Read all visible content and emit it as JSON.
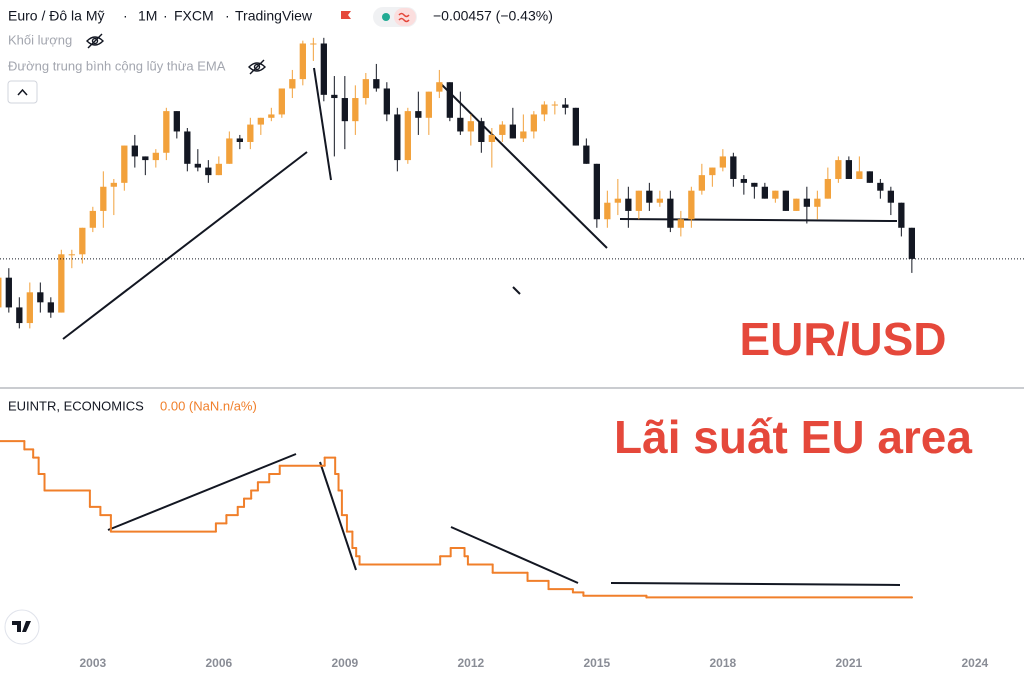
{
  "header": {
    "symbol": "Euro / Đô la Mỹ",
    "interval": "1M",
    "exchange": "FXCM",
    "source": "TradingView",
    "change": "−0.00457 (−0.43%)"
  },
  "indicators": [
    "Khối lượng",
    "Đường trung bình cộng lũy thừa EMA"
  ],
  "chart_data": [
    {
      "type": "candlestick",
      "title": "EUR/USD",
      "up_color": "#f2a13b",
      "down_color": "#131722",
      "log_scale": true,
      "xlim": [
        2000.79,
        2025.17
      ],
      "ylim": [
        0.736,
        1.74
      ],
      "x": [
        2000.75,
        2001,
        2001.25,
        2001.5,
        2001.75,
        2002,
        2002.25,
        2002.5,
        2002.75,
        2003,
        2003.25,
        2003.5,
        2003.75,
        2004,
        2004.25,
        2004.5,
        2004.75,
        2005,
        2005.25,
        2005.5,
        2005.75,
        2006,
        2006.25,
        2006.5,
        2006.75,
        2007,
        2007.25,
        2007.5,
        2007.75,
        2008,
        2008.25,
        2008.5,
        2008.75,
        2009,
        2009.25,
        2009.5,
        2009.75,
        2010,
        2010.25,
        2010.5,
        2010.75,
        2011,
        2011.25,
        2011.5,
        2011.75,
        2012,
        2012.25,
        2012.5,
        2012.75,
        2013,
        2013.25,
        2013.5,
        2013.75,
        2014,
        2014.25,
        2014.5,
        2014.75,
        2015,
        2015.25,
        2015.5,
        2015.75,
        2016,
        2016.25,
        2016.5,
        2016.75,
        2017,
        2017.25,
        2017.5,
        2017.75,
        2018,
        2018.25,
        2018.5,
        2018.75,
        2019,
        2019.25,
        2019.5,
        2019.75,
        2020,
        2020.25,
        2020.5,
        2020.75,
        2021,
        2021.25,
        2021.5,
        2021.75,
        2022,
        2022.25,
        2022.5
      ],
      "open": [
        0.88,
        0.94,
        0.88,
        0.85,
        0.91,
        0.89,
        0.87,
        0.99,
        0.99,
        1.05,
        1.09,
        1.15,
        1.16,
        1.26,
        1.23,
        1.22,
        1.24,
        1.36,
        1.3,
        1.21,
        1.2,
        1.18,
        1.21,
        1.28,
        1.27,
        1.32,
        1.34,
        1.35,
        1.43,
        1.46,
        1.58,
        1.58,
        1.41,
        1.4,
        1.33,
        1.4,
        1.46,
        1.43,
        1.35,
        1.22,
        1.36,
        1.34,
        1.42,
        1.45,
        1.34,
        1.3,
        1.33,
        1.27,
        1.29,
        1.32,
        1.28,
        1.3,
        1.35,
        1.38,
        1.38,
        1.37,
        1.26,
        1.21,
        1.07,
        1.11,
        1.12,
        1.09,
        1.14,
        1.11,
        1.12,
        1.05,
        1.07,
        1.14,
        1.18,
        1.2,
        1.23,
        1.17,
        1.16,
        1.15,
        1.12,
        1.14,
        1.09,
        1.12,
        1.1,
        1.12,
        1.17,
        1.22,
        1.17,
        1.19,
        1.16,
        1.14,
        1.11,
        1.05
      ],
      "high": [
        0.94,
        0.96,
        0.9,
        0.93,
        0.93,
        0.9,
        1.0,
        1.0,
        1.05,
        1.1,
        1.19,
        1.17,
        1.26,
        1.29,
        1.23,
        1.25,
        1.37,
        1.36,
        1.31,
        1.25,
        1.22,
        1.23,
        1.3,
        1.29,
        1.34,
        1.34,
        1.37,
        1.43,
        1.49,
        1.59,
        1.6,
        1.6,
        1.47,
        1.47,
        1.44,
        1.48,
        1.51,
        1.45,
        1.37,
        1.37,
        1.42,
        1.42,
        1.49,
        1.45,
        1.42,
        1.35,
        1.34,
        1.31,
        1.33,
        1.37,
        1.35,
        1.36,
        1.39,
        1.39,
        1.4,
        1.37,
        1.28,
        1.21,
        1.14,
        1.17,
        1.15,
        1.14,
        1.16,
        1.14,
        1.14,
        1.09,
        1.15,
        1.21,
        1.2,
        1.25,
        1.24,
        1.18,
        1.16,
        1.16,
        1.14,
        1.14,
        1.12,
        1.15,
        1.14,
        1.2,
        1.23,
        1.23,
        1.23,
        1.19,
        1.17,
        1.15,
        1.11,
        1.05
      ],
      "low": [
        0.82,
        0.87,
        0.84,
        0.84,
        0.87,
        0.86,
        0.87,
        0.96,
        0.97,
        1.04,
        1.05,
        1.08,
        1.14,
        1.2,
        1.18,
        1.2,
        1.22,
        1.28,
        1.19,
        1.19,
        1.16,
        1.18,
        1.21,
        1.25,
        1.25,
        1.29,
        1.33,
        1.34,
        1.4,
        1.44,
        1.52,
        1.39,
        1.23,
        1.25,
        1.29,
        1.38,
        1.42,
        1.33,
        1.19,
        1.21,
        1.29,
        1.29,
        1.4,
        1.33,
        1.29,
        1.26,
        1.24,
        1.2,
        1.27,
        1.28,
        1.27,
        1.28,
        1.33,
        1.35,
        1.35,
        1.26,
        1.21,
        1.05,
        1.05,
        1.08,
        1.05,
        1.07,
        1.09,
        1.1,
        1.04,
        1.03,
        1.05,
        1.13,
        1.15,
        1.19,
        1.15,
        1.13,
        1.12,
        1.12,
        1.11,
        1.09,
        1.09,
        1.06,
        1.07,
        1.12,
        1.16,
        1.17,
        1.17,
        1.16,
        1.12,
        1.08,
        1.03,
        0.95
      ],
      "close": [
        0.94,
        0.88,
        0.85,
        0.91,
        0.89,
        0.87,
        0.99,
        0.99,
        1.05,
        1.09,
        1.15,
        1.16,
        1.26,
        1.23,
        1.22,
        1.24,
        1.36,
        1.3,
        1.21,
        1.2,
        1.18,
        1.21,
        1.28,
        1.27,
        1.32,
        1.34,
        1.35,
        1.43,
        1.46,
        1.58,
        1.58,
        1.41,
        1.4,
        1.33,
        1.4,
        1.46,
        1.43,
        1.35,
        1.22,
        1.36,
        1.34,
        1.42,
        1.45,
        1.34,
        1.3,
        1.33,
        1.27,
        1.29,
        1.32,
        1.28,
        1.3,
        1.35,
        1.38,
        1.38,
        1.37,
        1.26,
        1.21,
        1.07,
        1.11,
        1.12,
        1.09,
        1.14,
        1.11,
        1.12,
        1.05,
        1.07,
        1.14,
        1.18,
        1.2,
        1.23,
        1.17,
        1.16,
        1.15,
        1.12,
        1.14,
        1.09,
        1.12,
        1.1,
        1.12,
        1.17,
        1.22,
        1.17,
        1.19,
        1.16,
        1.14,
        1.11,
        1.05,
        0.98
      ]
    },
    {
      "type": "line",
      "title": "Lãi suất EU area",
      "legend": "EUINTR, ECONOMICS",
      "status": "0.00 (NaN.n/a%)",
      "color": "#f07f2a",
      "step": true,
      "xlim": [
        2000.79,
        2025.17
      ],
      "ylim": [
        -1.6,
        6.0
      ],
      "xticks": [
        2003,
        2006,
        2009,
        2012,
        2015,
        2018,
        2021,
        2024
      ],
      "x": [
        2000.75,
        2001.37,
        2001.58,
        2001.71,
        2001.85,
        2002.93,
        2003.18,
        2003.43,
        2005.93,
        2006.18,
        2006.45,
        2006.6,
        2006.77,
        2006.93,
        2007.2,
        2007.45,
        2008.52,
        2008.77,
        2008.85,
        2008.93,
        2009.05,
        2009.18,
        2009.27,
        2009.35,
        2011.27,
        2011.52,
        2011.85,
        2011.93,
        2012.52,
        2013.35,
        2013.85,
        2014.43,
        2014.68,
        2016.18,
        2022.5
      ],
      "values": [
        4.75,
        4.5,
        4.25,
        3.75,
        3.25,
        2.75,
        2.5,
        2.0,
        2.25,
        2.5,
        2.75,
        3.0,
        3.25,
        3.5,
        3.75,
        4.0,
        4.25,
        3.75,
        3.25,
        2.5,
        2.0,
        1.5,
        1.25,
        1.0,
        1.25,
        1.5,
        1.25,
        1.0,
        0.75,
        0.5,
        0.25,
        0.15,
        0.05,
        0,
        0
      ]
    }
  ]
}
